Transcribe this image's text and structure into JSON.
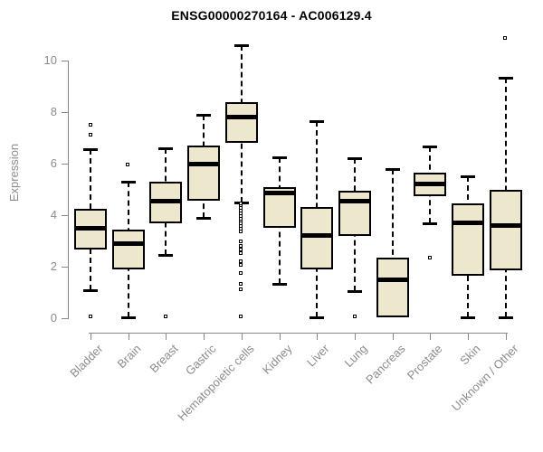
{
  "chart_data": {
    "type": "boxplot",
    "title": "ENSG00000270164 - AC006129.4",
    "ylabel": "Expression",
    "xlabel": "",
    "ylim": [
      0,
      11
    ],
    "yticks": [
      0,
      2,
      4,
      6,
      8,
      10
    ],
    "grid": false,
    "legend": "none",
    "colors": {
      "box_fill": "#EDE8CD",
      "box_border": "#000000",
      "median": "#000000",
      "whisker": "#000000",
      "axis": "#888888",
      "tick_text": "#8c8c8c",
      "title_text": "#000000",
      "background": "#ffffff"
    },
    "categories": [
      "Bladder",
      "Brain",
      "Breast",
      "Gastric",
      "Hematopoietic cells",
      "Kidney",
      "Liver",
      "Lung",
      "Pancreas",
      "Prostate",
      "Skin",
      "Unknown / Other"
    ],
    "boxes": [
      {
        "label": "Bladder",
        "whislo": 1.1,
        "q1": 2.65,
        "med": 3.5,
        "q3": 4.25,
        "whishi": 6.55,
        "outliers": [
          7.5,
          7.1,
          0.05
        ]
      },
      {
        "label": "Brain",
        "whislo": 0.05,
        "q1": 1.9,
        "med": 2.9,
        "q3": 3.45,
        "whishi": 5.3,
        "outliers": [
          5.95
        ]
      },
      {
        "label": "Breast",
        "whislo": 2.45,
        "q1": 3.7,
        "med": 4.55,
        "q3": 5.3,
        "whishi": 6.6,
        "outliers": [
          0.05
        ]
      },
      {
        "label": "Gastric",
        "whislo": 3.9,
        "q1": 4.55,
        "med": 6.0,
        "q3": 6.7,
        "whishi": 7.9,
        "outliers": []
      },
      {
        "label": "Hematopoietic cells",
        "whislo": 4.5,
        "q1": 6.8,
        "med": 7.8,
        "q3": 8.4,
        "whishi": 10.6,
        "outliers": [
          4.45,
          4.35,
          4.25,
          4.15,
          4.05,
          3.95,
          3.85,
          3.75,
          3.65,
          3.55,
          3.45,
          3.35,
          2.95,
          2.8,
          2.65,
          2.5,
          2.2,
          2.05,
          1.75,
          1.3,
          1.1,
          0.05
        ]
      },
      {
        "label": "Kidney",
        "whislo": 1.35,
        "q1": 3.5,
        "med": 4.85,
        "q3": 5.1,
        "whishi": 6.25,
        "outliers": []
      },
      {
        "label": "Liver",
        "whislo": 0.05,
        "q1": 1.9,
        "med": 3.2,
        "q3": 4.3,
        "whishi": 7.65,
        "outliers": []
      },
      {
        "label": "Lung",
        "whislo": 1.05,
        "q1": 3.2,
        "med": 4.55,
        "q3": 4.95,
        "whishi": 6.2,
        "outliers": [
          0.05
        ]
      },
      {
        "label": "Pancreas",
        "whislo": 0.05,
        "q1": 0.05,
        "med": 1.5,
        "q3": 2.35,
        "whishi": 5.8,
        "outliers": []
      },
      {
        "label": "Prostate",
        "whislo": 3.7,
        "q1": 4.75,
        "med": 5.2,
        "q3": 5.65,
        "whishi": 6.65,
        "outliers": [
          2.35
        ]
      },
      {
        "label": "Skin",
        "whislo": 0.05,
        "q1": 1.65,
        "med": 3.7,
        "q3": 4.45,
        "whishi": 5.5,
        "outliers": []
      },
      {
        "label": "Unknown / Other",
        "whislo": 0.05,
        "q1": 1.85,
        "med": 3.6,
        "q3": 5.0,
        "whishi": 9.35,
        "outliers": [
          10.85
        ]
      }
    ]
  }
}
